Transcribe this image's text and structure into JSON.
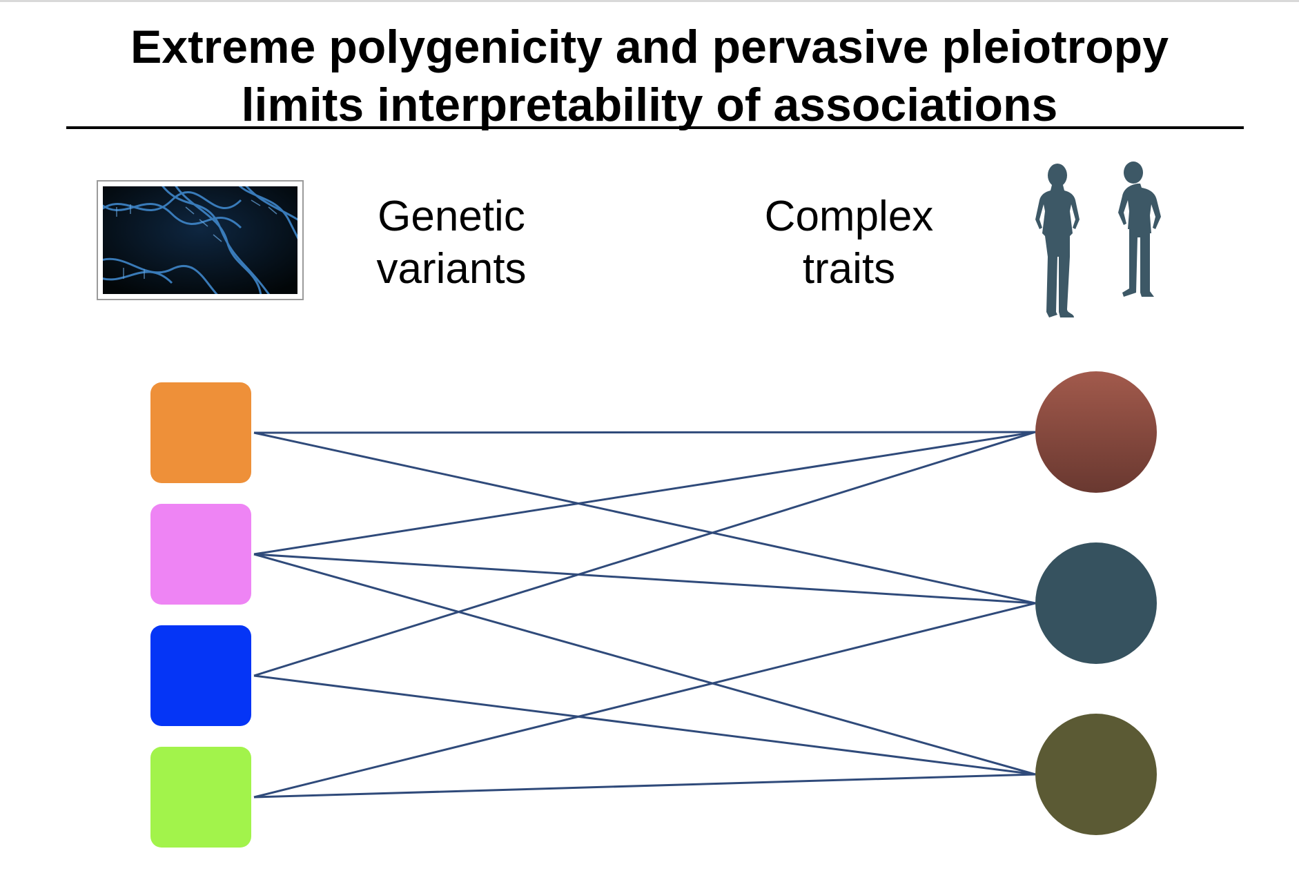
{
  "title": {
    "line1": "Extreme polygenicity and pervasive pleiotropy",
    "line2": "limits interpretability of associations"
  },
  "labels": {
    "genetic_line1": "Genetic",
    "genetic_line2": "variants",
    "complex_line1": "Complex",
    "complex_line2": "traits"
  },
  "variants": [
    {
      "id": "v1",
      "color": "#ee9039"
    },
    {
      "id": "v2",
      "color": "#ee84f4"
    },
    {
      "id": "v3",
      "color": "#0535f6"
    },
    {
      "id": "v4",
      "color": "#a2f34b"
    }
  ],
  "traits": [
    {
      "id": "t1",
      "color": "#8e4a40"
    },
    {
      "id": "t2",
      "color": "#36525f"
    },
    {
      "id": "t3",
      "color": "#5b5a34"
    }
  ],
  "edges": [
    [
      "v1",
      "t1"
    ],
    [
      "v1",
      "t2"
    ],
    [
      "v2",
      "t1"
    ],
    [
      "v2",
      "t2"
    ],
    [
      "v2",
      "t3"
    ],
    [
      "v3",
      "t1"
    ],
    [
      "v3",
      "t3"
    ],
    [
      "v4",
      "t2"
    ],
    [
      "v4",
      "t3"
    ]
  ],
  "colors": {
    "edge": "#2f4a7a",
    "people": "#3d5866"
  }
}
